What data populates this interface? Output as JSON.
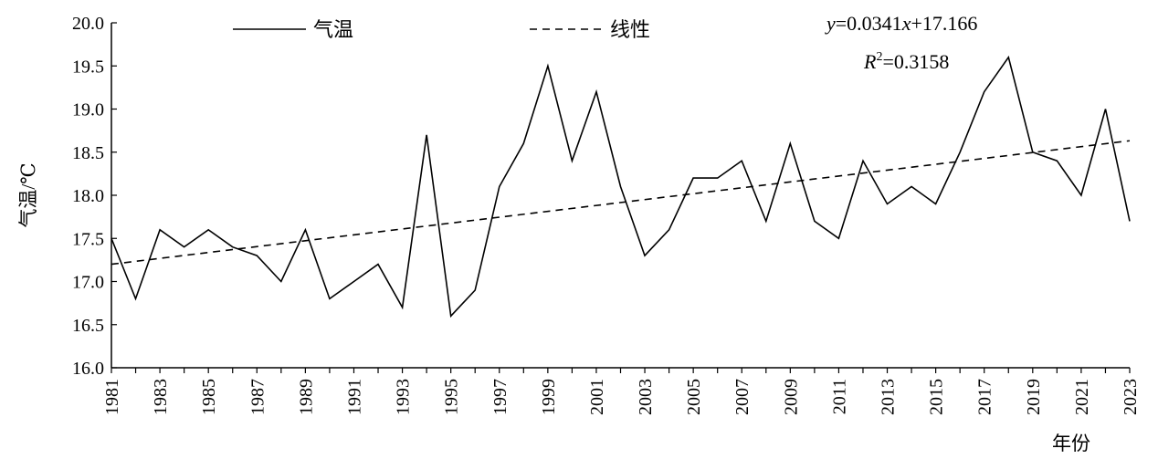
{
  "chart_data": {
    "type": "line",
    "title": "",
    "xlabel": "年份",
    "ylabel": "气温/℃",
    "x": [
      1981,
      1982,
      1983,
      1984,
      1985,
      1986,
      1987,
      1988,
      1989,
      1990,
      1991,
      1992,
      1993,
      1994,
      1995,
      1996,
      1997,
      1998,
      1999,
      2000,
      2001,
      2002,
      2003,
      2004,
      2005,
      2006,
      2007,
      2008,
      2009,
      2010,
      2011,
      2012,
      2013,
      2014,
      2015,
      2016,
      2017,
      2018,
      2019,
      2020,
      2021,
      2022,
      2023
    ],
    "x_tick_labels": [
      "1981",
      "1983",
      "1985",
      "1987",
      "1989",
      "1991",
      "1993",
      "1995",
      "1997",
      "1999",
      "2001",
      "2003",
      "2005",
      "2007",
      "2009",
      "2011",
      "2013",
      "2015",
      "2017",
      "2019",
      "2021",
      "2023"
    ],
    "y_tick_labels": [
      "16.0",
      "16.5",
      "17.0",
      "17.5",
      "18.0",
      "18.5",
      "19.0",
      "19.5",
      "20.0"
    ],
    "ylim": [
      16.0,
      20.0
    ],
    "grid": false,
    "legend_placement": "top",
    "series": [
      {
        "name": "气温",
        "style": "solid",
        "color": "#000000",
        "values": [
          17.5,
          16.8,
          17.6,
          17.4,
          17.6,
          17.4,
          17.3,
          17.0,
          17.6,
          16.8,
          17.0,
          17.2,
          16.7,
          18.7,
          16.6,
          16.9,
          18.1,
          18.6,
          19.5,
          18.4,
          19.2,
          18.1,
          17.3,
          17.6,
          18.2,
          18.2,
          18.4,
          17.7,
          18.6,
          17.7,
          17.5,
          18.4,
          17.9,
          18.1,
          17.9,
          18.5,
          19.2,
          19.6,
          18.5,
          18.4,
          18.0,
          19.0,
          17.7
        ]
      },
      {
        "name": "线性",
        "style": "dashed",
        "color": "#000000",
        "slope": 0.0341,
        "intercept": 17.166
      }
    ],
    "annotations": {
      "equation_y": "y",
      "equation_rest": "=0.0341",
      "equation_x": "x",
      "equation_tail": "+17.166",
      "r2_symbol": "R",
      "r2_power": "2",
      "r2_value": "=0.3158"
    }
  }
}
